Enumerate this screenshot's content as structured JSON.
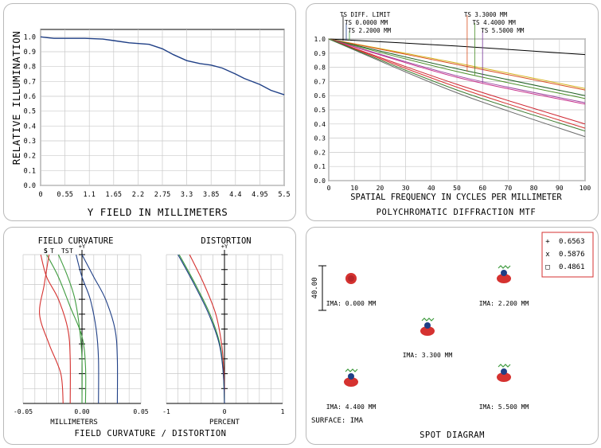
{
  "chart_data": [
    {
      "type": "line",
      "title": "",
      "xlabel": "Y FIELD IN MILLIMETERS",
      "ylabel": "RELATIVE ILLUMINATION",
      "x_ticks": [
        "0",
        "0.55",
        "1.1",
        "1.65",
        "2.2",
        "2.75",
        "3.3",
        "3.85",
        "4.4",
        "4.95",
        "5.5"
      ],
      "y_ticks": [
        "0.0",
        "0.1",
        "0.2",
        "0.3",
        "0.4",
        "0.5",
        "0.6",
        "0.7",
        "0.8",
        "0.9",
        "1.0"
      ],
      "xlim": [
        0,
        5.5
      ],
      "ylim": [
        0,
        1.05
      ],
      "grid": true,
      "color": "#1f3f86",
      "series": [
        {
          "x": [
            0,
            0.15,
            0.3,
            0.6,
            1.0,
            1.4,
            1.65,
            2.0,
            2.45,
            2.75,
            3.0,
            3.3,
            3.6,
            3.85,
            4.1,
            4.4,
            4.6,
            4.95,
            5.2,
            5.5
          ],
          "y": [
            1.0,
            0.995,
            0.99,
            0.99,
            0.99,
            0.985,
            0.975,
            0.96,
            0.95,
            0.92,
            0.88,
            0.84,
            0.82,
            0.81,
            0.79,
            0.75,
            0.72,
            0.68,
            0.64,
            0.61
          ]
        }
      ]
    },
    {
      "type": "line",
      "title": "POLYCHROMATIC DIFFRACTION MTF",
      "xlabel": "SPATIAL FREQUENCY IN CYCLES PER MILLIMETER",
      "ylabel": "",
      "x_ticks": [
        "0",
        "10",
        "20",
        "30",
        "40",
        "50",
        "60",
        "70",
        "80",
        "90",
        "100"
      ],
      "y_ticks": [
        "0.0",
        "0.1",
        "0.2",
        "0.3",
        "0.4",
        "0.5",
        "0.6",
        "0.7",
        "0.8",
        "0.9",
        "1.0"
      ],
      "xlim": [
        0,
        100
      ],
      "ylim": [
        0,
        1.0
      ],
      "grid": true,
      "legend": [
        "TS DIFF. LIMIT",
        "TS 0.0000 MM",
        "TS 2.2000 MM",
        "TS 3.3000 MM",
        "TS 4.4000 MM",
        "TS 5.5000 MM"
      ],
      "series": [
        {
          "color": "#000000",
          "x": [
            0,
            50,
            100
          ],
          "y": [
            1.0,
            0.95,
            0.89
          ]
        },
        {
          "color": "#d5b21c",
          "x": [
            0,
            50,
            100
          ],
          "y": [
            1.0,
            0.83,
            0.65
          ]
        },
        {
          "color": "#d84f1e",
          "x": [
            0,
            50,
            100
          ],
          "y": [
            1.0,
            0.82,
            0.64
          ]
        },
        {
          "color": "#1f5f22",
          "x": [
            0,
            50,
            100
          ],
          "y": [
            1.0,
            0.79,
            0.6
          ]
        },
        {
          "color": "#4c8f2a",
          "x": [
            0,
            50,
            100
          ],
          "y": [
            1.0,
            0.77,
            0.58
          ]
        },
        {
          "color": "#9f46a0",
          "x": [
            0,
            50,
            100
          ],
          "y": [
            1.0,
            0.74,
            0.55
          ]
        },
        {
          "color": "#c8318c",
          "x": [
            0,
            50,
            100
          ],
          "y": [
            1.0,
            0.73,
            0.54
          ]
        },
        {
          "color": "#cf2530",
          "x": [
            0,
            50,
            100
          ],
          "y": [
            1.0,
            0.68,
            0.4
          ]
        },
        {
          "color": "#d53230",
          "x": [
            0,
            50,
            100
          ],
          "y": [
            1.0,
            0.66,
            0.37
          ]
        },
        {
          "color": "#6a6a6a",
          "x": [
            0,
            50,
            100
          ],
          "y": [
            1.0,
            0.62,
            0.31
          ]
        },
        {
          "color": "#3d7a30",
          "x": [
            0,
            50,
            100
          ],
          "y": [
            1.0,
            0.64,
            0.35
          ]
        }
      ],
      "markers": [
        {
          "label": "TS 3.3000 MM",
          "color": "#d84f1e",
          "x": 54,
          "y": 0.77
        },
        {
          "label": "TS 4.4000 MM",
          "color": "#4c8f2a",
          "x": 57,
          "y": 0.74
        },
        {
          "label": "TS 5.5000 MM",
          "color": "#7f3fa0",
          "x": 60,
          "y": 0.69
        }
      ]
    },
    {
      "type": "line",
      "title": "FIELD CURVATURE",
      "xlabel": "MILLIMETERS",
      "ylabel": "+Y",
      "x_ticks": [
        "-0.05",
        "0.00",
        "0.05"
      ],
      "xlim": [
        -0.05,
        0.05
      ],
      "ylim": [
        0,
        1
      ],
      "grid": true,
      "legend": [
        "S",
        "T",
        "TS",
        "T"
      ],
      "series": [
        {
          "name": "T",
          "color": "#1f3f86",
          "x": [
            0.03,
            0.03,
            0.028,
            0.02,
            0.01,
            0.0
          ],
          "y": [
            0,
            0.3,
            0.5,
            0.7,
            0.85,
            1.0
          ]
        },
        {
          "name": "S",
          "color": "#1f3f86",
          "x": [
            0.014,
            0.014,
            0.012,
            0.007,
            0.0,
            -0.005
          ],
          "y": [
            0,
            0.3,
            0.5,
            0.7,
            0.85,
            1.0
          ]
        },
        {
          "name": "T",
          "color": "#3f9b3f",
          "x": [
            0.003,
            0.003,
            0.0,
            -0.01,
            -0.02,
            -0.03
          ],
          "y": [
            0,
            0.25,
            0.45,
            0.65,
            0.85,
            1.0
          ]
        },
        {
          "name": "S",
          "color": "#3f9b3f",
          "x": [
            0.0,
            0.0,
            -0.002,
            -0.006,
            -0.012,
            -0.02
          ],
          "y": [
            0,
            0.3,
            0.5,
            0.7,
            0.85,
            1.0
          ]
        },
        {
          "name": "T",
          "color": "#d53230",
          "x": [
            -0.01,
            -0.01,
            -0.012,
            -0.02,
            -0.03,
            -0.035
          ],
          "y": [
            0,
            0.3,
            0.5,
            0.7,
            0.85,
            1.0
          ]
        },
        {
          "name": "S",
          "color": "#d53230",
          "x": [
            -0.016,
            -0.018,
            -0.028,
            -0.036,
            -0.032,
            -0.028
          ],
          "y": [
            0,
            0.2,
            0.4,
            0.6,
            0.8,
            1.0
          ]
        }
      ]
    },
    {
      "type": "line",
      "title": "DISTORTION",
      "xlabel": "PERCENT",
      "ylabel": "+Y",
      "x_ticks": [
        "-1",
        "0",
        "1"
      ],
      "xlim": [
        -1,
        1
      ],
      "ylim": [
        0,
        1
      ],
      "grid": true,
      "footer": "FIELD CURVATURE / DISTORTION",
      "series": [
        {
          "color": "#d53230",
          "x": [
            0,
            -0.01,
            -0.05,
            -0.15,
            -0.35,
            -0.6
          ],
          "y": [
            0,
            0.2,
            0.4,
            0.6,
            0.8,
            1.0
          ]
        },
        {
          "color": "#3f9b3f",
          "x": [
            0,
            -0.02,
            -0.08,
            -0.25,
            -0.5,
            -0.78
          ],
          "y": [
            0,
            0.2,
            0.4,
            0.6,
            0.8,
            1.0
          ]
        },
        {
          "color": "#1f3f86",
          "x": [
            0,
            -0.02,
            -0.09,
            -0.27,
            -0.52,
            -0.8
          ],
          "y": [
            0,
            0.2,
            0.4,
            0.6,
            0.8,
            1.0
          ]
        }
      ]
    },
    {
      "type": "scatter",
      "title": "SPOT DIAGRAM",
      "surface": "SURFACE: IMA",
      "scale": "40.00",
      "legend": [
        {
          "symbol": "+",
          "value": "0.6563",
          "color": "#1f3f86"
        },
        {
          "symbol": "x",
          "value": "0.5876",
          "color": "#3f9b3f"
        },
        {
          "symbol": "□",
          "value": "0.4861",
          "color": "#d53230"
        }
      ],
      "spots": [
        {
          "label": "IMA: 0.000 MM"
        },
        {
          "label": "IMA: 2.200 MM"
        },
        {
          "label": "IMA: 3.300 MM"
        },
        {
          "label": "IMA: 4.400 MM"
        },
        {
          "label": "IMA: 5.500 MM"
        }
      ]
    }
  ]
}
